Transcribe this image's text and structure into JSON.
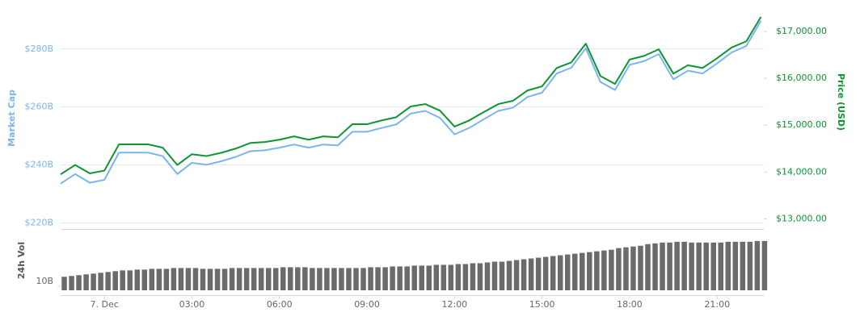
{
  "chart_data": [
    {
      "type": "line",
      "ylabel": "Market Cap",
      "y2label": "Price (USD)",
      "grid": true,
      "xlim": [
        -1.5,
        22.6
      ],
      "ylim": [
        218,
        294
      ],
      "yticks": [
        {
          "value": 220,
          "label": "$220B"
        },
        {
          "value": 240,
          "label": "$240B"
        },
        {
          "value": 260,
          "label": "$260B"
        },
        {
          "value": 280,
          "label": "$280B"
        }
      ],
      "y2lim": [
        12800,
        17500
      ],
      "y2ticks": [
        {
          "value": 13000,
          "label": "$13,000.00"
        },
        {
          "value": 14000,
          "label": "$14,000.00"
        },
        {
          "value": 15000,
          "label": "$15,000.00"
        },
        {
          "value": 16000,
          "label": "$16,000.00"
        },
        {
          "value": 17000,
          "label": "$17,000.00"
        }
      ],
      "x": [
        -1.5,
        -1,
        -0.5,
        0,
        0.5,
        1,
        1.5,
        2,
        2.5,
        3,
        3.5,
        4,
        4.5,
        5,
        5.5,
        6,
        6.5,
        7,
        7.5,
        8,
        8.5,
        9,
        9.5,
        10,
        10.5,
        11,
        11.5,
        12,
        12.5,
        13,
        13.5,
        14,
        14.5,
        15,
        15.5,
        16,
        16.5,
        17,
        17.5,
        18,
        18.5,
        19,
        19.5,
        20,
        20.5,
        21,
        21.5,
        22,
        22.5
      ],
      "series": [
        {
          "color": "#7cb5ec",
          "values": [
            233.4,
            236.7,
            233.7,
            234.7,
            244.1,
            244.1,
            244.1,
            242.9,
            236.7,
            240.6,
            239.9,
            241.1,
            242.6,
            244.6,
            244.9,
            245.8,
            246.9,
            245.8,
            246.9,
            246.6,
            251.3,
            251.3,
            252.6,
            253.8,
            257.6,
            258.5,
            256.1,
            250.4,
            252.6,
            255.6,
            258.5,
            259.6,
            263.3,
            264.8,
            271.4,
            273.4,
            280.1,
            268.5,
            265.7,
            274.4,
            275.7,
            278.1,
            269.4,
            272.4,
            271.4,
            274.9,
            278.7,
            280.9,
            289.6
          ]
        },
        {
          "color": "#0d9433",
          "axis": "y2",
          "values": [
            13950,
            14150,
            13970,
            14030,
            14590,
            14590,
            14590,
            14520,
            14150,
            14380,
            14340,
            14410,
            14500,
            14620,
            14640,
            14690,
            14760,
            14690,
            14760,
            14740,
            15020,
            15020,
            15100,
            15170,
            15400,
            15450,
            15310,
            14970,
            15100,
            15280,
            15450,
            15520,
            15740,
            15830,
            16220,
            16340,
            16740,
            16050,
            15880,
            16400,
            16480,
            16620,
            16100,
            16280,
            16220,
            16430,
            16660,
            16790,
            17310
          ]
        }
      ]
    },
    {
      "type": "bar",
      "ylabel": "24h Vol",
      "color": "#6b6b6b",
      "xlim": [
        -1.5,
        22.6
      ],
      "ylim": [
        9.5,
        17
      ],
      "yticks": [
        {
          "value": 10,
          "label": "10B"
        }
      ],
      "xticks": [
        {
          "value": 0,
          "label": "7. Dec"
        },
        {
          "value": 3,
          "label": "03:00"
        },
        {
          "value": 6,
          "label": "06:00"
        },
        {
          "value": 9,
          "label": "09:00"
        },
        {
          "value": 12,
          "label": "12:00"
        },
        {
          "value": 15,
          "label": "15:00"
        },
        {
          "value": 18,
          "label": "18:00"
        },
        {
          "value": 21,
          "label": "21:00"
        }
      ],
      "x": [
        -1.5,
        -1.25,
        -1,
        -0.75,
        -0.5,
        -0.25,
        0,
        0.25,
        0.5,
        0.75,
        1,
        1.25,
        1.5,
        1.75,
        2,
        2.25,
        2.5,
        2.75,
        3,
        3.25,
        3.5,
        3.75,
        4,
        4.25,
        4.5,
        4.75,
        5,
        5.25,
        5.5,
        5.75,
        6,
        6.25,
        6.5,
        6.75,
        7,
        7.25,
        7.5,
        7.75,
        8,
        8.25,
        8.5,
        8.75,
        9,
        9.25,
        9.5,
        9.75,
        10,
        10.25,
        10.5,
        10.75,
        11,
        11.25,
        11.5,
        11.75,
        12,
        12.25,
        12.5,
        12.75,
        13,
        13.25,
        13.5,
        13.75,
        14,
        14.25,
        14.5,
        14.75,
        15,
        15.25,
        15.5,
        15.75,
        16,
        16.25,
        16.5,
        16.75,
        17,
        17.25,
        17.5,
        17.75,
        18,
        18.25,
        18.5,
        18.75,
        19,
        19.25,
        19.5,
        19.75,
        20,
        20.25,
        20.5,
        20.75,
        21,
        21.25,
        21.5,
        21.75,
        22,
        22.25,
        22.5
      ],
      "values": [
        11.2,
        11.3,
        11.4,
        11.5,
        11.6,
        11.7,
        11.8,
        11.9,
        12.0,
        12.0,
        12.1,
        12.1,
        12.2,
        12.2,
        12.2,
        12.3,
        12.3,
        12.3,
        12.3,
        12.2,
        12.2,
        12.2,
        12.2,
        12.3,
        12.3,
        12.3,
        12.3,
        12.3,
        12.3,
        12.3,
        12.4,
        12.4,
        12.4,
        12.4,
        12.3,
        12.3,
        12.3,
        12.3,
        12.3,
        12.3,
        12.3,
        12.3,
        12.4,
        12.4,
        12.4,
        12.5,
        12.5,
        12.5,
        12.6,
        12.6,
        12.6,
        12.7,
        12.7,
        12.7,
        12.8,
        12.8,
        12.9,
        12.9,
        13.0,
        13.1,
        13.1,
        13.2,
        13.3,
        13.4,
        13.5,
        13.6,
        13.7,
        13.8,
        13.9,
        14.0,
        14.1,
        14.2,
        14.3,
        14.4,
        14.5,
        14.6,
        14.8,
        14.9,
        15.0,
        15.1,
        15.3,
        15.4,
        15.5,
        15.5,
        15.6,
        15.6,
        15.5,
        15.5,
        15.5,
        15.5,
        15.5,
        15.6,
        15.6,
        15.6,
        15.6,
        15.7,
        15.7
      ]
    }
  ]
}
